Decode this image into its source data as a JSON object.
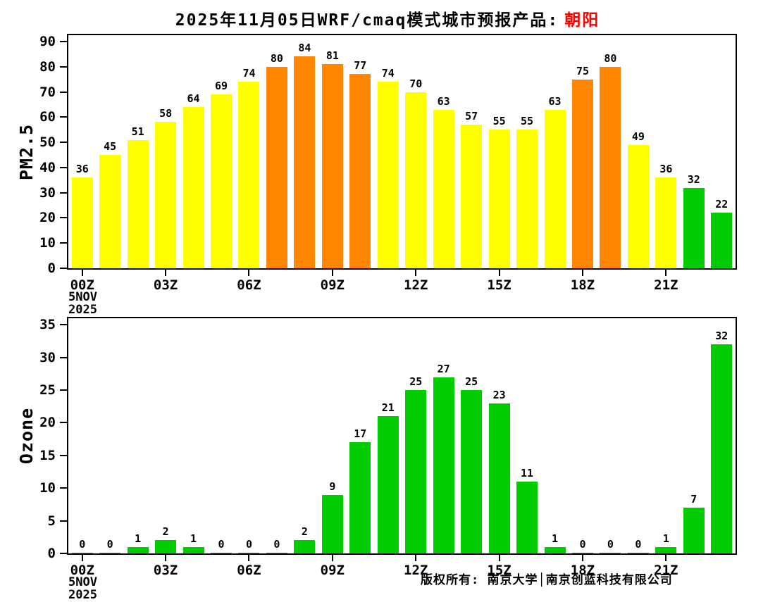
{
  "title": {
    "prefix": "2025年11月05日WRF/cmaq模式城市预报产品:",
    "city": "朝阳"
  },
  "footer": {
    "copyright": "版权所有: 南京大学│南京创蓝科技有限公司"
  },
  "colors": {
    "green": "#00cc00",
    "yellow": "#ffff00",
    "orange": "#ff8600",
    "axis": "#000000",
    "text": "#000000",
    "city_accent": "#ff0000",
    "background": "#ffffff"
  },
  "x_axis": {
    "hour_labels": [
      "00Z",
      "03Z",
      "06Z",
      "09Z",
      "12Z",
      "15Z",
      "18Z",
      "21Z"
    ],
    "hour_positions": [
      0,
      3,
      6,
      9,
      12,
      15,
      18,
      21
    ],
    "date_line1": "5NOV",
    "date_line2": "2025"
  },
  "chart_data": [
    {
      "type": "bar",
      "title": "",
      "ylabel": "PM2.5",
      "xlabel": "",
      "ylim": [
        0,
        92.5
      ],
      "yticks": [
        0,
        10,
        20,
        30,
        40,
        50,
        60,
        70,
        80,
        90
      ],
      "x_hours": [
        0,
        1,
        2,
        3,
        4,
        5,
        6,
        7,
        8,
        9,
        10,
        11,
        12,
        13,
        14,
        15,
        16,
        17,
        18,
        19,
        20,
        21,
        22,
        23
      ],
      "values": [
        36,
        45,
        51,
        58,
        64,
        69,
        74,
        80,
        84,
        81,
        77,
        74,
        70,
        63,
        57,
        55,
        55,
        63,
        75,
        80,
        49,
        36,
        32,
        22
      ],
      "color_rule": [
        {
          "max": 35,
          "color": "green"
        },
        {
          "max": 74,
          "color": "yellow"
        },
        {
          "max": 9999,
          "color": "orange"
        }
      ],
      "grid": false,
      "legend": "none"
    },
    {
      "type": "bar",
      "title": "",
      "ylabel": "Ozone",
      "xlabel": "",
      "ylim": [
        0,
        36
      ],
      "yticks": [
        0,
        5,
        10,
        15,
        20,
        25,
        30,
        35
      ],
      "x_hours": [
        0,
        1,
        2,
        3,
        4,
        5,
        6,
        7,
        8,
        9,
        10,
        11,
        12,
        13,
        14,
        15,
        16,
        17,
        18,
        19,
        20,
        21,
        22,
        23
      ],
      "values": [
        0,
        0,
        1,
        2,
        1,
        0,
        0,
        0,
        2,
        9,
        17,
        21,
        25,
        27,
        25,
        23,
        11,
        1,
        0,
        0,
        0,
        1,
        7,
        32
      ],
      "color_rule": [
        {
          "max": 35,
          "color": "green"
        },
        {
          "max": 74,
          "color": "yellow"
        },
        {
          "max": 9999,
          "color": "orange"
        }
      ],
      "grid": false,
      "legend": "none"
    }
  ]
}
